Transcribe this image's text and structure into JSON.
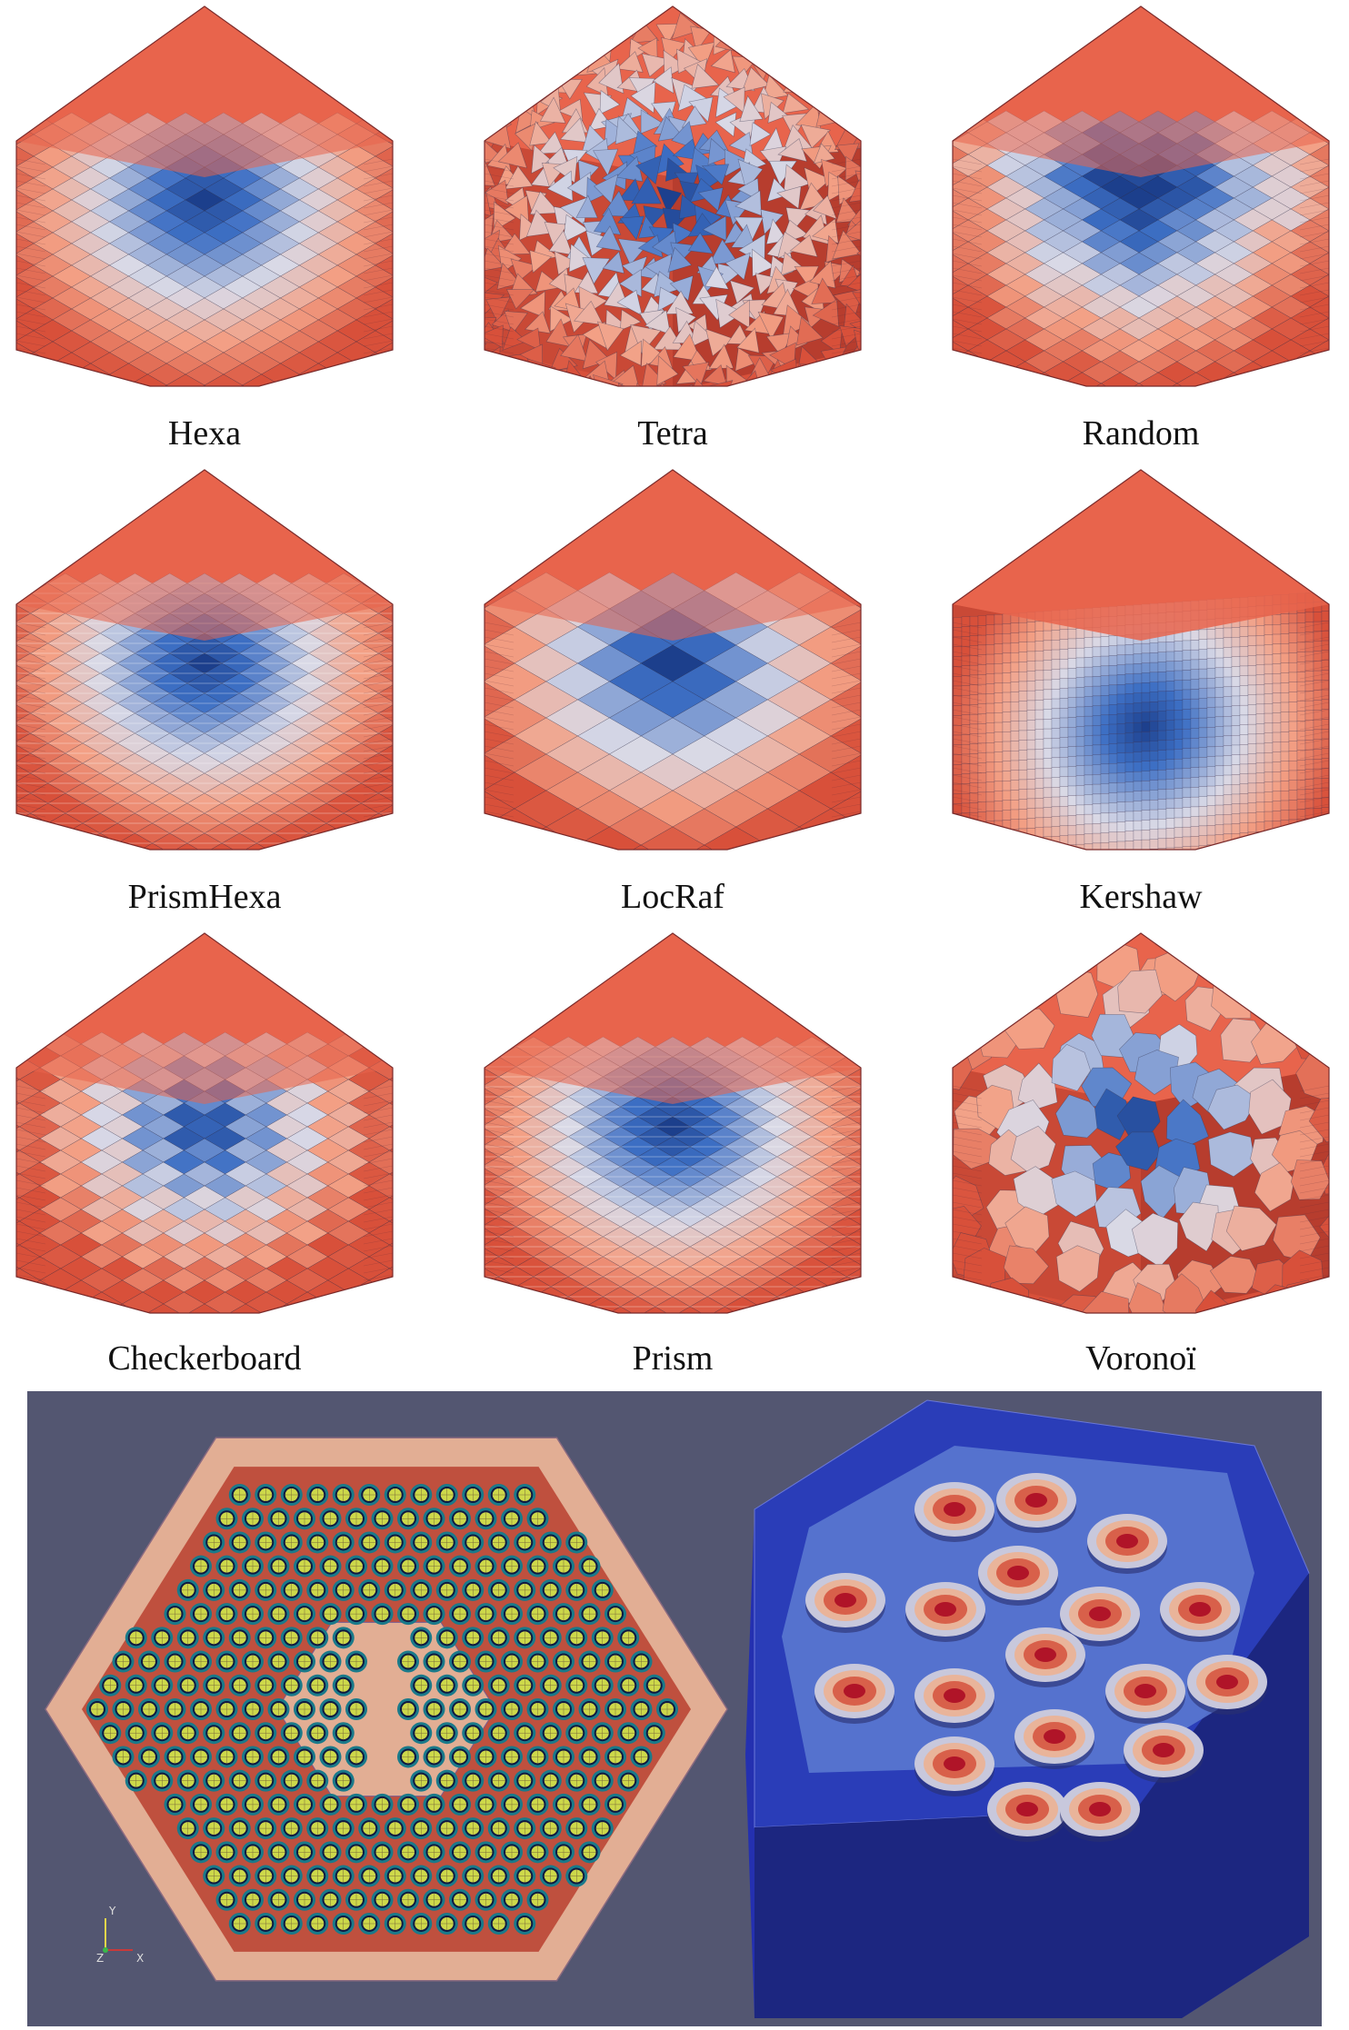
{
  "meshes": [
    {
      "label": "Hexa",
      "style": "hexa"
    },
    {
      "label": "Tetra",
      "style": "tetra"
    },
    {
      "label": "Random",
      "style": "random"
    },
    {
      "label": "PrismHexa",
      "style": "prismhexa"
    },
    {
      "label": "LocRaf",
      "style": "locraf"
    },
    {
      "label": "Kershaw",
      "style": "kershaw"
    },
    {
      "label": "Checkerboard",
      "style": "checker"
    },
    {
      "label": "Prism",
      "style": "prism"
    },
    {
      "label": "Voronoï",
      "style": "voronoi"
    }
  ],
  "colors": {
    "warm": "#d8503a",
    "warm_light": "#f3a085",
    "neutral": "#d9d9e6",
    "cool": "#3d6fc4",
    "cool_dark": "#1c3f8c",
    "background_view": "#535671",
    "assembly_fill": "#e2ae94",
    "assembly_red": "#b8402f",
    "pin_green": "#cdd84a",
    "pin_ring": "#1a7a8a",
    "block_blue": "#2a3db8"
  },
  "axis_triad": {
    "y": "Y",
    "z": "Z",
    "x": "X"
  }
}
